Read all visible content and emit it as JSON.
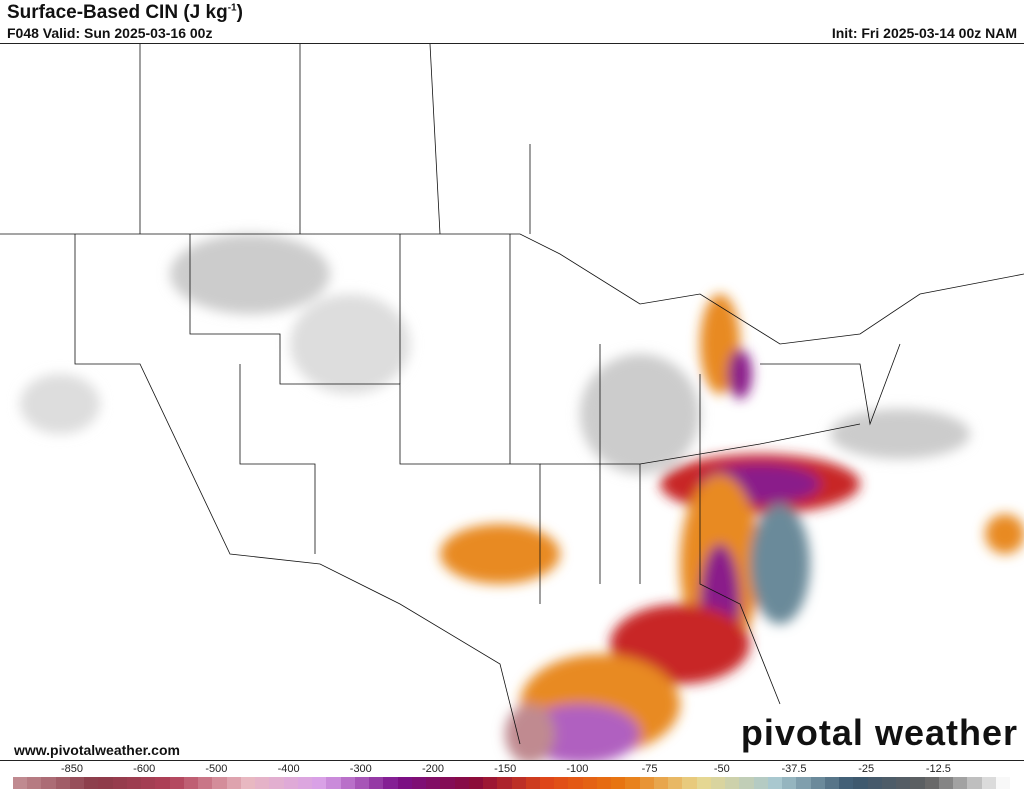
{
  "header": {
    "title": "Surface-Based CIN (J kg",
    "title_sup": "-1",
    "title_end": ")",
    "valid": "F048 Valid: Sun 2025-03-16 00z",
    "init": "Init: Fri 2025-03-14 00z NAM"
  },
  "footer": {
    "site": "www.pivotalweather.com",
    "logo": "pivotal weather"
  },
  "colorbar": {
    "ticks": [
      "-850",
      "-600",
      "-500",
      "-400",
      "-300",
      "-200",
      "-150",
      "-100",
      "-75",
      "-50",
      "-37.5",
      "-25",
      "-12.5"
    ],
    "color_stops": [
      "#c08a90",
      "#8a3a48",
      "#b04058",
      "#e8b8c0",
      "#d8a0e8",
      "#7a108a",
      "#8a0a3a",
      "#e04818",
      "#e87810",
      "#e8d890",
      "#a8c8d0",
      "#3a5870",
      "#606060",
      "#f8f8f8"
    ]
  },
  "map": {
    "highlight_colors": {
      "purple": "#8a1a8a",
      "red": "#c82828",
      "orange": "#e88a20",
      "blue_gray": "#6a8a9a",
      "gray": "#c8c8c8"
    }
  }
}
